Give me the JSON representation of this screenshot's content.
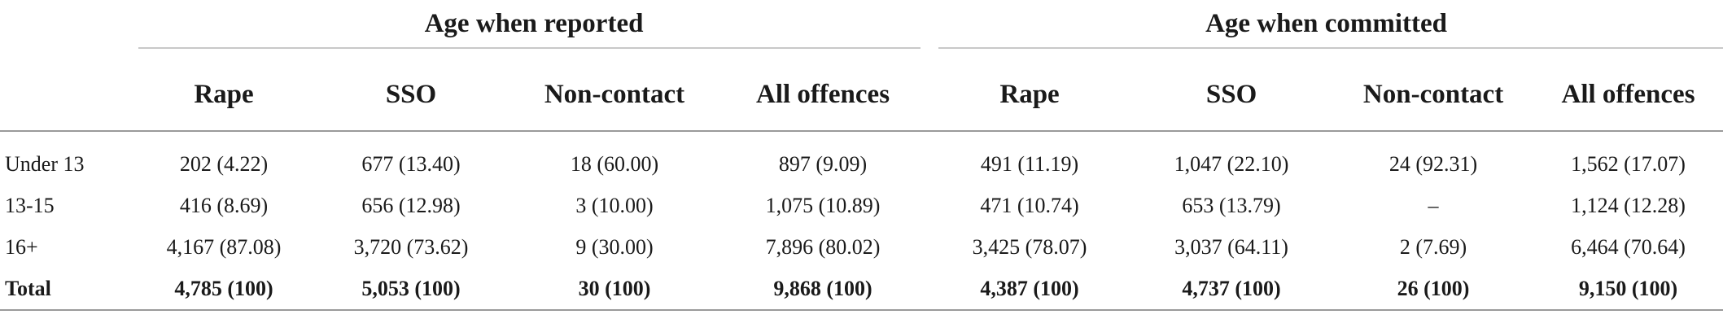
{
  "groups": {
    "reported": "Age when reported",
    "committed": "Age when committed"
  },
  "columns": [
    "Rape",
    "SSO",
    "Non-contact",
    "All offences",
    "Rape",
    "SSO",
    "Non-contact",
    "All offences"
  ],
  "rows": [
    {
      "label": "Under 13",
      "cells": [
        "202 (4.22)",
        "677 (13.40)",
        "18 (60.00)",
        "897 (9.09)",
        "491 (11.19)",
        "1,047 (22.10)",
        "24 (92.31)",
        "1,562 (17.07)"
      ]
    },
    {
      "label": "13-15",
      "cells": [
        "416 (8.69)",
        "656 (12.98)",
        "3 (10.00)",
        "1,075 (10.89)",
        "471 (10.74)",
        "653 (13.79)",
        "–",
        "1,124 (12.28)"
      ]
    },
    {
      "label": "16+",
      "cells": [
        "4,167 (87.08)",
        "3,720 (73.62)",
        "9 (30.00)",
        "7,896 (80.02)",
        "3,425 (78.07)",
        "3,037 (64.11)",
        "2 (7.69)",
        "6,464 (70.64)"
      ]
    },
    {
      "label": "Total",
      "cells": [
        "4,785 (100)",
        "5,053 (100)",
        "30 (100)",
        "9,868 (100)",
        "4,387 (100)",
        "4,737 (100)",
        "26 (100)",
        "9,150 (100)"
      ]
    }
  ]
}
